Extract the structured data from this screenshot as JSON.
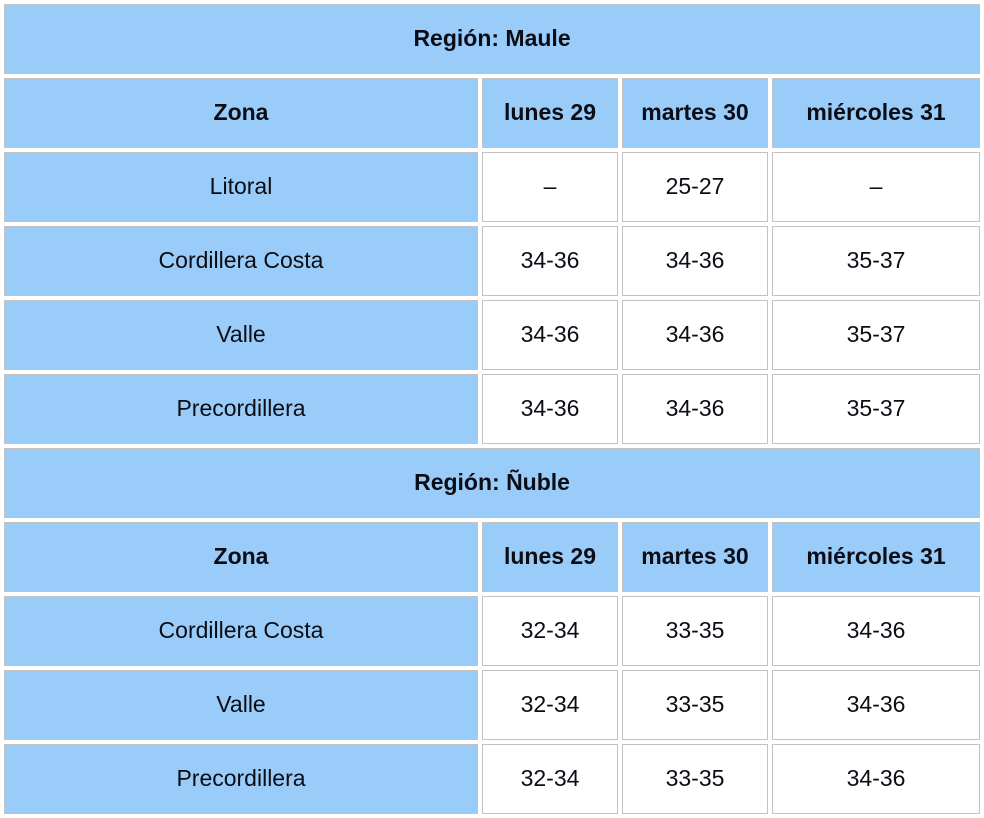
{
  "colors": {
    "cell_blue": "#99ccf9",
    "border_gray": "#c2c2c2",
    "text_dark": "#0c0c14",
    "empty_dash_gray": "#b9b9b9"
  },
  "empty_marker": "–",
  "tables": [
    {
      "region_label": "Región: Maule",
      "columns": [
        "Zona",
        "lunes 29",
        "martes 30",
        "miércoles 31"
      ],
      "rows": [
        {
          "zone": "Litoral",
          "values": [
            "–",
            "25-27",
            "–"
          ]
        },
        {
          "zone": "Cordillera Costa",
          "values": [
            "34-36",
            "34-36",
            "35-37"
          ]
        },
        {
          "zone": "Valle",
          "values": [
            "34-36",
            "34-36",
            "35-37"
          ]
        },
        {
          "zone": "Precordillera",
          "values": [
            "34-36",
            "34-36",
            "35-37"
          ]
        }
      ]
    },
    {
      "region_label": "Región: Ñuble",
      "columns": [
        "Zona",
        "lunes 29",
        "martes 30",
        "miércoles 31"
      ],
      "rows": [
        {
          "zone": "Cordillera Costa",
          "values": [
            "32-34",
            "33-35",
            "34-36"
          ]
        },
        {
          "zone": "Valle",
          "values": [
            "32-34",
            "33-35",
            "34-36"
          ]
        },
        {
          "zone": "Precordillera",
          "values": [
            "32-34",
            "33-35",
            "34-36"
          ]
        }
      ]
    }
  ]
}
